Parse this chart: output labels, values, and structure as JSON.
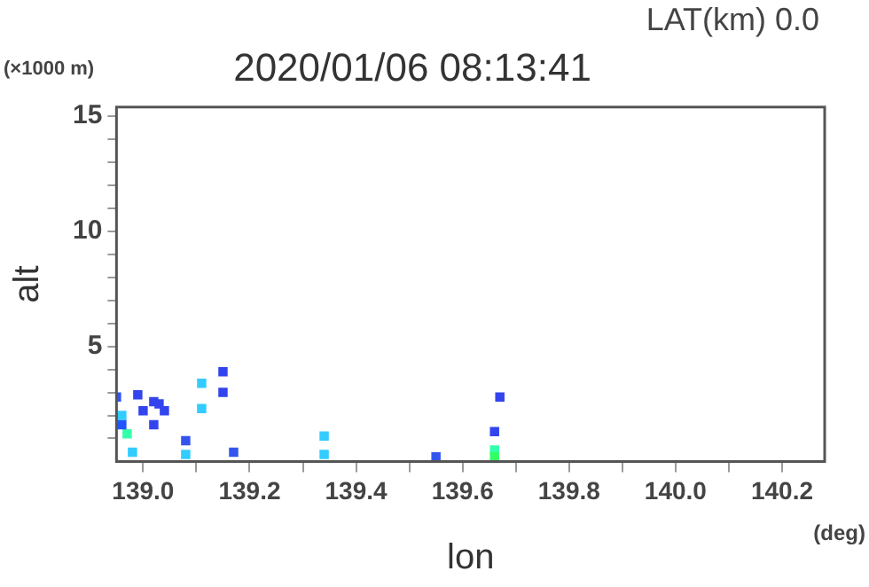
{
  "chart_data": {
    "type": "scatter",
    "title": "2020/01/06 08:13:41",
    "xlabel": "lon",
    "ylabel": "alt",
    "annotations": [
      "LAT(km) 0.0",
      "(×1000 m)",
      "(deg)"
    ],
    "x": [
      138.95,
      138.96,
      138.97,
      138.98,
      138.96,
      138.99,
      139.0,
      139.02,
      139.03,
      139.04,
      139.02,
      139.08,
      139.08,
      139.11,
      139.11,
      139.15,
      139.15,
      139.17,
      139.34,
      139.34,
      139.55,
      139.66,
      139.66,
      139.66,
      139.67
    ],
    "values": [
      2.8,
      2.0,
      1.2,
      0.4,
      1.6,
      2.9,
      2.2,
      1.6,
      2.5,
      2.2,
      2.6,
      0.3,
      0.9,
      3.4,
      2.3,
      3.9,
      3.0,
      0.4,
      0.3,
      1.1,
      0.2,
      1.3,
      0.5,
      0.2,
      2.8
    ],
    "colors": [
      "#3355ee",
      "#33ccff",
      "#33ffaa",
      "#33ccff",
      "#2255ff",
      "#3344ee",
      "#3344ee",
      "#3344ee",
      "#3344ee",
      "#3344ee",
      "#3344ee",
      "#33ccff",
      "#3355ee",
      "#33ccff",
      "#33ccff",
      "#3344ee",
      "#3344ee",
      "#3355ee",
      "#33ccff",
      "#33ccff",
      "#3355ee",
      "#3344ee",
      "#33ffaa",
      "#33ff66",
      "#3344ee"
    ],
    "marker": "square",
    "xlim": [
      138.95,
      140.28
    ],
    "ylim": [
      0,
      15.4
    ],
    "xticks": [
      {
        "value": 139.0,
        "label": "139.0"
      },
      {
        "value": 139.1,
        "label": null
      },
      {
        "value": 139.2,
        "label": "139.2"
      },
      {
        "value": 139.3,
        "label": null
      },
      {
        "value": 139.4,
        "label": "139.4"
      },
      {
        "value": 139.5,
        "label": null
      },
      {
        "value": 139.6,
        "label": "139.6"
      },
      {
        "value": 139.7,
        "label": null
      },
      {
        "value": 139.8,
        "label": "139.8"
      },
      {
        "value": 139.9,
        "label": null
      },
      {
        "value": 140.0,
        "label": "140.0"
      },
      {
        "value": 140.1,
        "label": null
      },
      {
        "value": 140.2,
        "label": "140.2"
      }
    ],
    "yticks": [
      {
        "value": 1,
        "label": null
      },
      {
        "value": 2,
        "label": null
      },
      {
        "value": 3,
        "label": null
      },
      {
        "value": 4,
        "label": null
      },
      5,
      {
        "value": 6,
        "label": null
      },
      {
        "value": 7,
        "label": null
      },
      {
        "value": 8,
        "label": null
      },
      {
        "value": 9,
        "label": null
      },
      10,
      {
        "value": 11,
        "label": null
      },
      {
        "value": 12,
        "label": null
      },
      {
        "value": 13,
        "label": null
      },
      {
        "value": 14,
        "label": null
      },
      15
    ],
    "grid": false,
    "legend": false
  }
}
